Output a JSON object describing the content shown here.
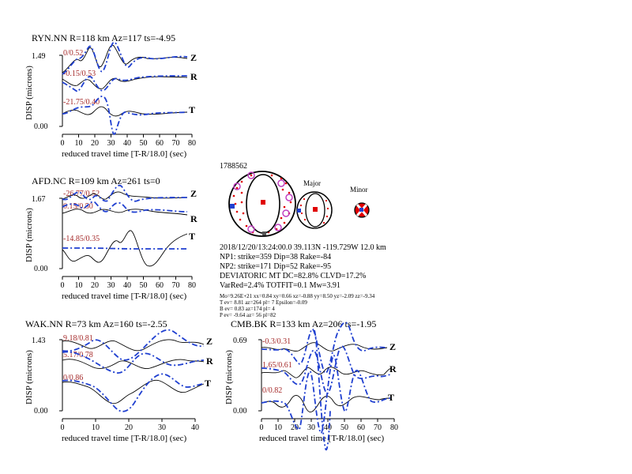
{
  "event": {
    "id": "1788562",
    "origin": "2018/12/20/13:24:00.0 39.113N -119.729W 12.0 km",
    "np1": "NP1: strike=359 Dip=38 Rake=-84",
    "np2": "NP2: strike=171 Dip=52 Rake=-95",
    "deviatoric": "DEVIATORIC MT DC=82.8% CLVD=17.2%",
    "fit": "VarRed=2.4% TOTFIT=0.1 Mw=3.91",
    "tensor": "Mo=9.26E+21 xx=0.84 xy=0.66 xz=-0.88 yy=8.50 yz=-2.09 zz=-9.34",
    "t_axis": "T ev= 8.81 az=264 pl= 7 Epsilon=-0.09",
    "b_axis": "B ev= 0.83 az=174 pl= 4",
    "p_axis": "P ev= -9.64 az= 56 pl=82",
    "major_label": "Major",
    "minor_label": "Minor"
  },
  "colors": {
    "observed": "#000000",
    "synthetic": "#1f3fd0",
    "amplitude_text": "#a52a2a",
    "compression": "#e00000",
    "station_marker": "#c040c0"
  },
  "chart_data": [
    {
      "type": "line",
      "title": "RYN.NN R=118 km Az=117 ts=-4.95",
      "xlabel": "reduced travel time [T-R/18.0] (sec)",
      "ylabel": "DISP (microns)",
      "yticks": [
        "1.49",
        "0.00"
      ],
      "xlim": [
        0,
        80
      ],
      "xticks": [
        "0",
        "10",
        "20",
        "30",
        "40",
        "50",
        "60",
        "70",
        "80"
      ],
      "traces": [
        {
          "component": "Z",
          "amplitude": "0/0.52"
        },
        {
          "component": "R",
          "amplitude": "-0.15/0.53"
        },
        {
          "component": "T",
          "amplitude": "-21.75/0.40"
        }
      ],
      "series": [
        {
          "name": "observed",
          "style": "solid black"
        },
        {
          "name": "synthetic",
          "style": "dash-dot blue"
        }
      ]
    },
    {
      "type": "line",
      "title": "AFD.NC R=109 km Az=261 ts=0",
      "xlabel": "reduced travel time [T-R/18.0] (sec)",
      "ylabel": "DISP (microns)",
      "yticks": [
        "1.67",
        "0.00"
      ],
      "xlim": [
        0,
        80
      ],
      "xticks": [
        "0",
        "10",
        "20",
        "30",
        "40",
        "50",
        "60",
        "70",
        "80"
      ],
      "traces": [
        {
          "component": "Z",
          "amplitude": "-26.77/0.52"
        },
        {
          "component": "R",
          "amplitude": "0.15/0.50"
        },
        {
          "component": "T",
          "amplitude": "-14.85/0.35"
        }
      ],
      "series": [
        {
          "name": "observed",
          "style": "solid black"
        },
        {
          "name": "synthetic",
          "style": "dash-dot blue"
        }
      ]
    },
    {
      "type": "line",
      "title": "WAK.NN R=73 km Az=160 ts=-2.55",
      "xlabel": "reduced travel time [T-R/18.0] (sec)",
      "ylabel": "DISP (microns)",
      "yticks": [
        "1.43",
        "0.00"
      ],
      "xlim": [
        0,
        40
      ],
      "xticks": [
        "0",
        "10",
        "20",
        "30",
        "40"
      ],
      "traces": [
        {
          "component": "Z",
          "amplitude": "9.18/0.81"
        },
        {
          "component": "R",
          "amplitude": "5.17/0.78"
        },
        {
          "component": "T",
          "amplitude": "0/0.86"
        }
      ],
      "series": [
        {
          "name": "observed",
          "style": "solid black"
        },
        {
          "name": "synthetic",
          "style": "dash-dot blue"
        }
      ]
    },
    {
      "type": "line",
      "title": "CMB.BK R=133 km Az=206 ts=-1.95",
      "xlabel": "reduced travel time [T-R/18.0] (sec)",
      "ylabel": "DISP (microns)",
      "yticks": [
        "0.69",
        "0.00"
      ],
      "xlim": [
        0,
        80
      ],
      "xticks": [
        "0",
        "10",
        "20",
        "30",
        "40",
        "50",
        "60",
        "70",
        "80"
      ],
      "traces": [
        {
          "component": "Z",
          "amplitude": "-0.3/0.31"
        },
        {
          "component": "R",
          "amplitude": "1.65/0.61"
        },
        {
          "component": "T",
          "amplitude": "0/0.82"
        }
      ],
      "series": [
        {
          "name": "observed",
          "style": "solid black"
        },
        {
          "name": "synthetic",
          "style": "dash-dot blue"
        }
      ]
    }
  ]
}
